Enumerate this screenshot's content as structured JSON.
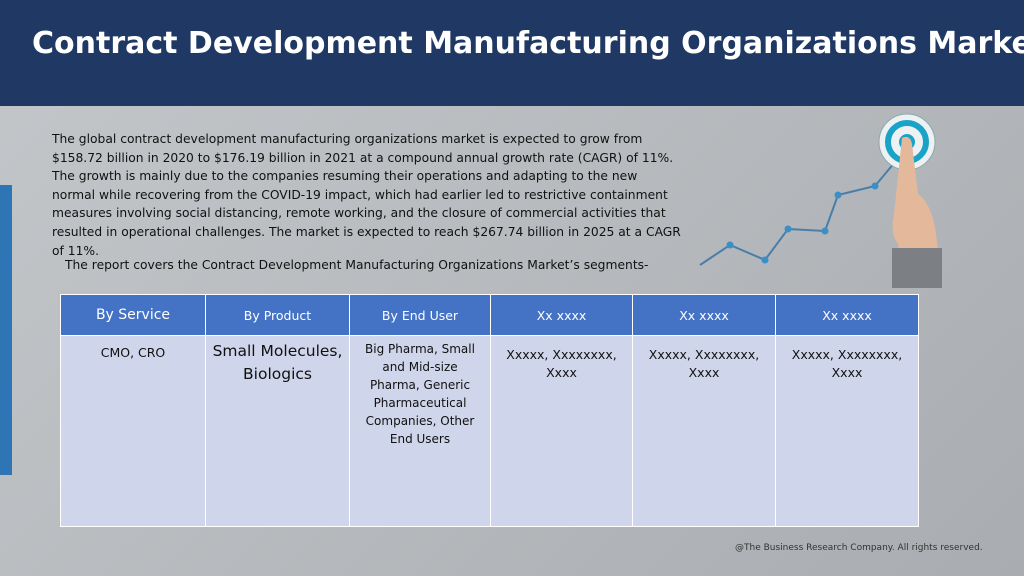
{
  "header": {
    "title": "Contract Development Manufacturing Organizations Market"
  },
  "body": {
    "paragraph": "The global contract development manufacturing organizations market is expected to grow from $158.72 billion in 2020 to $176.19 billion in 2021 at a compound annual growth rate (CAGR) of 11%. The growth is mainly due to the companies resuming their operations and adapting to the new normal while recovering from the COVID-19 impact, which had earlier led to restrictive containment measures involving social distancing, remote working, and the closure of commercial activities that resulted in operational challenges. The market is expected to reach $267.74 billion in 2025 at a CAGR of 11%.",
    "segments_intro": "The report covers the Contract Development Manufacturing Organizations Market’s segments-"
  },
  "table": {
    "headers": [
      "By Service",
      "By Product",
      "By End User",
      "Xx xxxx",
      "Xx xxxx",
      "Xx xxxx"
    ],
    "rows": [
      [
        "CMO, CRO",
        "Small Molecules, Biologics",
        "Big Pharma, Small and Mid-size Pharma, Generic Pharmaceutical Companies, Other End Users",
        "Xxxxx, Xxxxxxxx, Xxxx",
        "Xxxxx, Xxxxxxxx, Xxxx",
        "Xxxxx, Xxxxxxxx, Xxxx"
      ]
    ]
  },
  "footer": {
    "copyright": "@The Business Research Company. All rights reserved."
  }
}
